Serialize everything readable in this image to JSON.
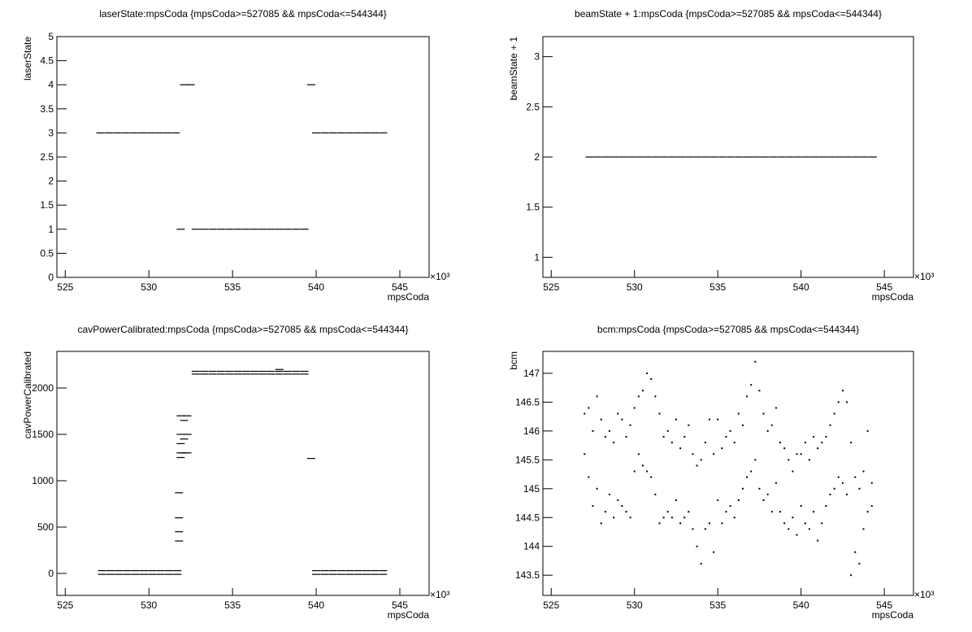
{
  "chart_data": [
    {
      "type": "scatter",
      "title": "laserState:mpsCoda {mpsCoda>=527085 && mpsCoda<=544344}",
      "x_label": "mpsCoda",
      "y_label": "laserState",
      "x_multiplier": "×10³",
      "color": "#000000",
      "xlim": [
        524.5,
        546.75
      ],
      "xticks": [
        525,
        530,
        535,
        540,
        545
      ],
      "ylim": [
        0,
        5
      ],
      "yticks": [
        0,
        0.5,
        1,
        1.5,
        2,
        2.5,
        3,
        3.5,
        4,
        4.5,
        5
      ],
      "x": [
        527.1,
        527.6,
        528.1,
        528.6,
        529.1,
        529.6,
        530.1,
        530.6,
        531.1,
        531.6,
        531.9,
        532.1,
        532.5,
        532.8,
        533.3,
        533.8,
        534.3,
        534.8,
        535.3,
        535.8,
        536.3,
        536.8,
        537.3,
        537.8,
        538.3,
        538.8,
        539.3,
        539.7,
        540.0,
        540.5,
        541.0,
        541.5,
        542.0,
        542.5,
        543.0,
        543.5,
        544.0
      ],
      "values": [
        3,
        3,
        3,
        3,
        3,
        3,
        3,
        3,
        3,
        3,
        1,
        4,
        4,
        1,
        1,
        1,
        1,
        1,
        1,
        1,
        1,
        1,
        1,
        1,
        1,
        1,
        1,
        4,
        3,
        3,
        3,
        3,
        3,
        3,
        3,
        3,
        3
      ]
    },
    {
      "type": "scatter",
      "title": "beamState + 1:mpsCoda {mpsCoda>=527085 && mpsCoda<=544344}",
      "x_label": "mpsCoda",
      "y_label": "beamState + 1",
      "x_multiplier": "×10³",
      "color": "#000000",
      "xlim": [
        524.5,
        546.75
      ],
      "xticks": [
        525,
        530,
        535,
        540,
        545
      ],
      "ylim": [
        0.8,
        3.2
      ],
      "yticks": [
        1,
        1.5,
        2,
        2.5,
        3
      ],
      "x": [
        527.3,
        527.8,
        528.3,
        528.8,
        529.3,
        529.8,
        530.3,
        530.8,
        531.3,
        531.8,
        532.3,
        532.8,
        533.3,
        533.8,
        534.3,
        534.8,
        535.3,
        535.8,
        536.3,
        536.8,
        537.3,
        537.8,
        538.3,
        538.8,
        539.3,
        539.8,
        540.3,
        540.8,
        541.3,
        541.8,
        542.3,
        542.8,
        543.3,
        543.8,
        544.3
      ],
      "values": [
        2,
        2,
        2,
        2,
        2,
        2,
        2,
        2,
        2,
        2,
        2,
        2,
        2,
        2,
        2,
        2,
        2,
        2,
        2,
        2,
        2,
        2,
        2,
        2,
        2,
        2,
        2,
        2,
        2,
        2,
        2,
        2,
        2,
        2,
        2
      ]
    },
    {
      "type": "scatter",
      "title": "cavPowerCalibrated:mpsCoda {mpsCoda>=527085 && mpsCoda<=544344}",
      "x_label": "mpsCoda",
      "y_label": "cavPowerCalibrated",
      "x_multiplier": "×10³",
      "color": "#000000",
      "xlim": [
        524.5,
        546.75
      ],
      "xticks": [
        525,
        530,
        535,
        540,
        545
      ],
      "ylim": [
        -237,
        2395
      ],
      "yticks": [
        0,
        500,
        1000,
        1500,
        2000
      ],
      "x": [
        527.2,
        527.7,
        528.2,
        528.7,
        529.2,
        529.7,
        530.2,
        530.7,
        531.2,
        531.7,
        527.2,
        527.7,
        528.2,
        528.7,
        529.2,
        529.7,
        530.2,
        530.7,
        531.2,
        531.7,
        540.0,
        540.5,
        541.0,
        541.5,
        542.0,
        542.5,
        543.0,
        543.5,
        544.0,
        540.0,
        540.5,
        541.0,
        541.5,
        542.0,
        542.5,
        543.0,
        543.5,
        544.0,
        532.8,
        533.3,
        533.8,
        534.3,
        534.8,
        535.3,
        535.8,
        536.3,
        536.8,
        537.3,
        537.8,
        538.3,
        538.8,
        539.3,
        532.8,
        533.3,
        533.8,
        534.3,
        534.8,
        535.3,
        535.8,
        536.3,
        536.8,
        537.3,
        537.8,
        538.3,
        538.8,
        539.3,
        531.9,
        531.9,
        531.9,
        531.9,
        531.9,
        532.1,
        532.1,
        532.1,
        532.3,
        532.3,
        532.3,
        531.8,
        531.8,
        531.8,
        531.8,
        539.7,
        537.8
      ],
      "values": [
        30,
        30,
        30,
        30,
        30,
        30,
        30,
        30,
        30,
        30,
        -10,
        -10,
        -10,
        -10,
        -10,
        -10,
        -10,
        -10,
        -10,
        -10,
        30,
        30,
        30,
        30,
        30,
        30,
        30,
        30,
        30,
        -10,
        -10,
        -10,
        -10,
        -10,
        -10,
        -10,
        -10,
        -10,
        2180,
        2180,
        2180,
        2180,
        2180,
        2180,
        2180,
        2180,
        2180,
        2180,
        2180,
        2180,
        2180,
        2180,
        2150,
        2150,
        2150,
        2150,
        2150,
        2150,
        2150,
        2150,
        2150,
        2150,
        2150,
        2150,
        2150,
        2150,
        1700,
        1500,
        1400,
        1300,
        1250,
        1650,
        1450,
        1300,
        1700,
        1500,
        1300,
        870,
        600,
        450,
        350,
        1240,
        2200
      ]
    },
    {
      "type": "scatter",
      "title": "bcm:mpsCoda {mpsCoda>=527085 && mpsCoda<=544344}",
      "x_label": "mpsCoda",
      "y_label": "bcm",
      "x_multiplier": "×10³",
      "color": "#000000",
      "xlim": [
        524.5,
        546.75
      ],
      "xticks": [
        525,
        530,
        535,
        540,
        545
      ],
      "ylim": [
        143.15,
        147.38
      ],
      "yticks": [
        143.5,
        144,
        144.5,
        145,
        145.5,
        146,
        146.5,
        147
      ],
      "x": [
        527,
        527,
        527.25,
        527.25,
        527.5,
        527.5,
        527.75,
        527.75,
        528,
        528,
        528.25,
        528.25,
        528.5,
        528.5,
        528.75,
        528.75,
        529,
        529,
        529.25,
        529.25,
        529.5,
        529.5,
        529.75,
        529.75,
        530,
        530,
        530.25,
        530.25,
        530.5,
        530.5,
        530.75,
        530.75,
        531,
        531,
        531.25,
        531.25,
        531.5,
        531.5,
        531.75,
        531.75,
        532,
        532,
        532.25,
        532.25,
        532.5,
        532.5,
        532.75,
        532.75,
        533,
        533,
        533.25,
        533.25,
        533.5,
        533.5,
        533.75,
        533.75,
        534,
        534,
        534.25,
        534.25,
        534.5,
        534.5,
        534.75,
        534.75,
        535,
        535,
        535.25,
        535.25,
        535.5,
        535.5,
        535.75,
        535.75,
        536,
        536,
        536.25,
        536.25,
        536.5,
        536.5,
        536.75,
        536.75,
        537,
        537,
        537.25,
        537.25,
        537.5,
        537.5,
        537.75,
        537.75,
        538,
        538,
        538.25,
        538.25,
        538.5,
        538.5,
        538.75,
        538.75,
        539,
        539,
        539.25,
        539.25,
        539.5,
        539.5,
        539.75,
        539.75,
        540,
        540,
        540.25,
        540.25,
        540.5,
        540.5,
        540.75,
        540.75,
        541,
        541,
        541.25,
        541.25,
        541.5,
        541.5,
        541.75,
        541.75,
        542,
        542,
        542.25,
        542.25,
        542.5,
        542.5,
        542.75,
        542.75,
        543,
        543,
        543.25,
        543.25,
        543.5,
        543.5,
        543.75,
        543.75,
        544,
        544,
        544.25,
        544.25
      ],
      "values": [
        146.3,
        145.6,
        146.4,
        145.2,
        146.0,
        144.7,
        146.6,
        145.0,
        146.2,
        144.4,
        145.9,
        144.6,
        146.0,
        144.9,
        145.8,
        144.5,
        146.3,
        144.8,
        146.2,
        144.7,
        145.9,
        144.6,
        146.1,
        144.5,
        146.4,
        145.3,
        146.6,
        145.6,
        146.7,
        145.4,
        147.0,
        145.3,
        146.9,
        145.2,
        146.6,
        144.9,
        146.3,
        144.4,
        145.9,
        144.5,
        146.0,
        144.6,
        145.8,
        144.5,
        146.2,
        144.8,
        145.7,
        144.4,
        145.9,
        144.5,
        146.1,
        144.6,
        145.6,
        144.3,
        145.4,
        144.0,
        145.5,
        143.7,
        145.8,
        144.3,
        146.2,
        144.4,
        145.6,
        143.9,
        146.2,
        144.8,
        145.7,
        144.4,
        145.9,
        144.6,
        146.0,
        144.7,
        145.8,
        144.5,
        146.3,
        144.8,
        146.1,
        145.0,
        146.6,
        145.2,
        146.8,
        145.3,
        147.2,
        145.5,
        146.7,
        145.0,
        146.3,
        144.8,
        146.0,
        144.9,
        146.1,
        144.6,
        146.4,
        145.1,
        145.8,
        144.6,
        145.7,
        144.4,
        145.5,
        144.3,
        145.3,
        144.5,
        145.6,
        144.2,
        145.6,
        144.7,
        145.8,
        144.4,
        145.5,
        144.3,
        145.9,
        144.6,
        145.7,
        144.1,
        145.8,
        144.4,
        145.9,
        144.7,
        146.1,
        144.9,
        146.3,
        145.0,
        146.5,
        145.2,
        146.7,
        145.1,
        146.5,
        144.9,
        145.8,
        143.5,
        145.2,
        143.9,
        145.0,
        143.7,
        145.3,
        144.3,
        146.0,
        144.6,
        145.1,
        144.7
      ]
    }
  ]
}
